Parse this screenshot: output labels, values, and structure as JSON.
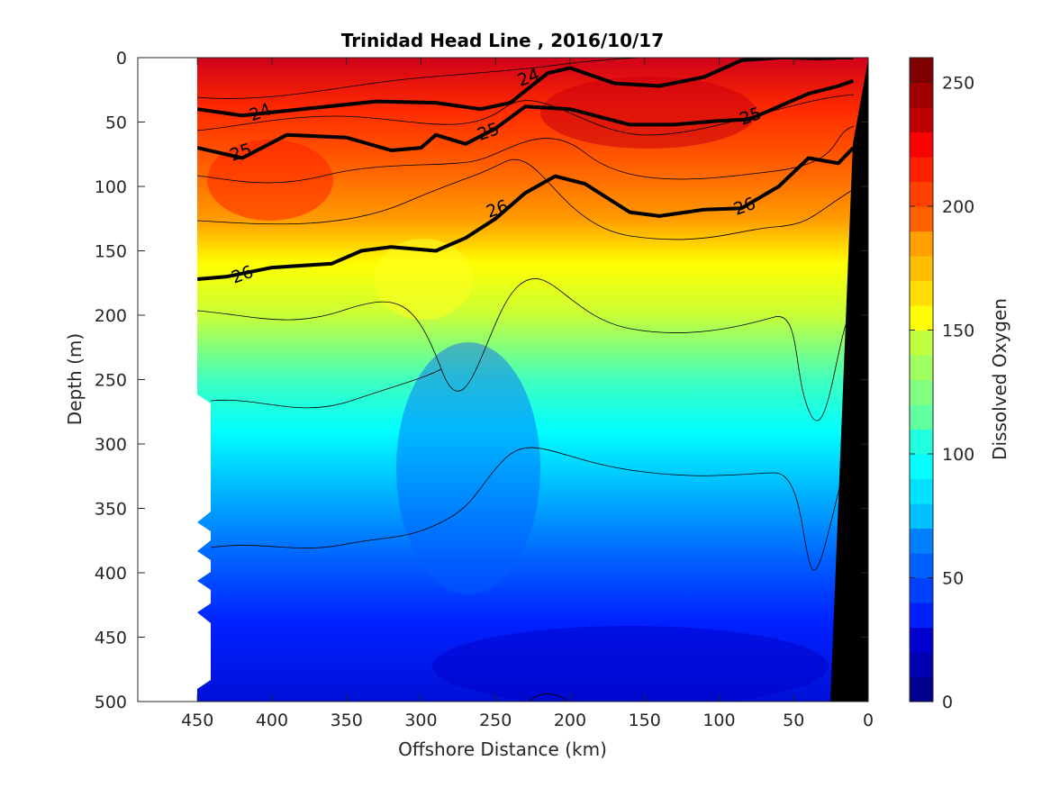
{
  "chart_data": {
    "type": "heatmap",
    "title": "Trinidad Head Line , 2016/10/17",
    "xlabel": "Offshore Distance (km)",
    "ylabel": "Depth (m)",
    "colorbar_label": "Dissolved Oxygen",
    "xlim": [
      490,
      0
    ],
    "ylim": [
      0,
      500
    ],
    "x_reversed": true,
    "y_reversed": true,
    "xticks": [
      "450",
      "400",
      "350",
      "300",
      "250",
      "200",
      "150",
      "100",
      "50",
      "0"
    ],
    "yticks": [
      "0",
      "50",
      "100",
      "150",
      "200",
      "250",
      "300",
      "350",
      "400",
      "450",
      "500"
    ],
    "colorbar_ticks": [
      "0",
      "50",
      "100",
      "150",
      "200",
      "250"
    ],
    "colorbar_range": [
      0,
      260
    ],
    "colormap": [
      "#00008f",
      "#0000ff",
      "#0080ff",
      "#00ffff",
      "#80ff80",
      "#ffff00",
      "#ff8000",
      "#ff0000",
      "#800000"
    ],
    "oxygen_profile": {
      "depth": [
        0,
        40,
        80,
        120,
        160,
        200,
        260,
        320,
        380,
        440,
        500
      ],
      "value": [
        215,
        228,
        222,
        195,
        165,
        138,
        110,
        85,
        62,
        42,
        30
      ]
    },
    "density_contours": [
      {
        "label": "24",
        "depth_at_x": {
          "x": [
            450,
            420,
            380,
            330,
            290,
            260,
            240,
            215,
            200,
            170,
            140,
            110,
            85,
            60,
            30,
            10
          ],
          "y": [
            40,
            45,
            40,
            34,
            35,
            40,
            35,
            12,
            8,
            20,
            22,
            15,
            2,
            0,
            0,
            0
          ]
        }
      },
      {
        "label": "25",
        "depth_at_x": {
          "x": [
            450,
            420,
            390,
            350,
            320,
            300,
            290,
            270,
            250,
            230,
            200,
            160,
            130,
            100,
            80,
            60,
            40,
            20,
            10
          ],
          "y": [
            70,
            78,
            60,
            62,
            72,
            70,
            60,
            67,
            55,
            38,
            40,
            52,
            52,
            49,
            48,
            38,
            28,
            22,
            18
          ]
        }
      },
      {
        "label": "26",
        "depth_at_x": {
          "x": [
            450,
            430,
            400,
            360,
            340,
            320,
            290,
            270,
            250,
            230,
            210,
            190,
            160,
            140,
            110,
            85,
            60,
            40,
            30,
            20,
            10
          ],
          "y": [
            172,
            170,
            163,
            160,
            150,
            147,
            150,
            140,
            125,
            105,
            92,
            98,
            120,
            123,
            118,
            117,
            100,
            78,
            80,
            82,
            70
          ]
        }
      }
    ],
    "contour_labels": [
      {
        "text": "24",
        "x": 408,
        "y": 42
      },
      {
        "text": "24",
        "x": 228,
        "y": 15
      },
      {
        "text": "25",
        "x": 421,
        "y": 73
      },
      {
        "text": "25",
        "x": 255,
        "y": 57
      },
      {
        "text": "25",
        "x": 79,
        "y": 45
      },
      {
        "text": "26",
        "x": 420,
        "y": 168
      },
      {
        "text": "26",
        "x": 249,
        "y": 117
      },
      {
        "text": "26",
        "x": 83,
        "y": 115
      }
    ],
    "grid": false,
    "legend": "colorbar-right"
  }
}
